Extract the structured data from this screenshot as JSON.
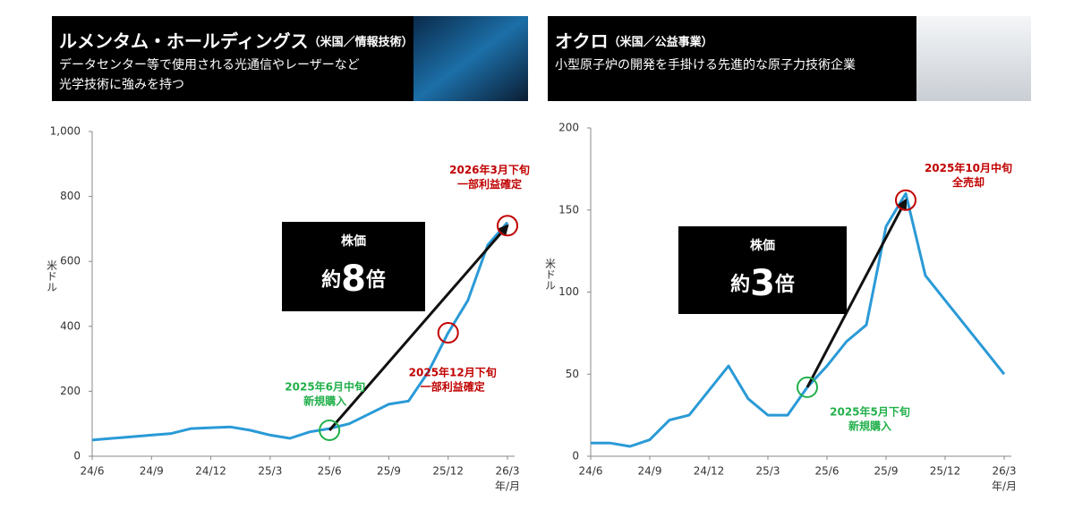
{
  "chart_data": [
    {
      "type": "line",
      "title": "ルメンタム・ホールディングス",
      "title_note": "（米国／情報技術）",
      "subtitle": [
        "データセンター等で使用される光通信やレーザーなど",
        "光学技術に強みを持つ"
      ],
      "y_label": "米ドル",
      "x_label": "年/月",
      "color": "#2a9ad6",
      "x": [
        "2024-06",
        "2024-07",
        "2024-08",
        "2024-09",
        "2024-10",
        "2024-11",
        "2024-12",
        "2025-01",
        "2025-02",
        "2025-03",
        "2025-04",
        "2025-05",
        "2025-06",
        "2025-07",
        "2025-08",
        "2025-09",
        "2025-10",
        "2025-11",
        "2025-12",
        "2026-01",
        "2026-02",
        "2026-03"
      ],
      "values": [
        50,
        55,
        60,
        65,
        70,
        85,
        88,
        90,
        80,
        65,
        55,
        75,
        85,
        100,
        130,
        160,
        170,
        260,
        380,
        480,
        650,
        720
      ],
      "xlim": [
        "2024-06",
        "2026-03"
      ],
      "xticks": [
        {
          "value": "2024-06",
          "label": "24/6"
        },
        {
          "value": "2024-09",
          "label": "24/9"
        },
        {
          "value": "2024-12",
          "label": "24/12"
        },
        {
          "value": "2025-03",
          "label": "25/3"
        },
        {
          "value": "2025-06",
          "label": "25/6"
        },
        {
          "value": "2025-09",
          "label": "25/9"
        },
        {
          "value": "2025-12",
          "label": "25/12"
        },
        {
          "value": "2026-03",
          "label": "26/3"
        }
      ],
      "ylim": [
        0,
        1000
      ],
      "yticks": [
        0,
        200,
        400,
        600,
        800,
        {
          "value": 1000,
          "label": "1,000"
        }
      ],
      "annotations": [
        {
          "lines": [
            "2025年6月中旬",
            "新規購入"
          ],
          "x": "2025-06",
          "value": 80,
          "color": "#22b04b"
        },
        {
          "lines": [
            "2025年12月下旬",
            "一部利益確定"
          ],
          "x": "2025-12",
          "value": 380,
          "color": "#c00000"
        },
        {
          "lines": [
            "2026年3月下旬",
            "一部利益確定"
          ],
          "x": "2026-03",
          "value": 710,
          "color": "#c00000"
        }
      ],
      "callout": {
        "label": "株価",
        "prefix": "約",
        "value": 8,
        "suffix": "倍"
      }
    },
    {
      "type": "line",
      "title": "オクロ",
      "title_note": "（米国／公益事業）",
      "subtitle": [
        "小型原子炉の開発を手掛ける先進的な原子力技術企業"
      ],
      "y_label": "米ドル",
      "x_label": "年/月",
      "color": "#2a9ad6",
      "x": [
        "2024-06",
        "2024-07",
        "2024-08",
        "2024-09",
        "2024-10",
        "2024-11",
        "2024-12",
        "2025-01",
        "2025-02",
        "2025-03",
        "2025-04",
        "2025-05",
        "2025-06",
        "2025-07",
        "2025-08",
        "2025-09",
        "2025-10",
        "2025-11",
        "2025-12",
        "2026-01",
        "2026-02",
        "2026-03"
      ],
      "values": [
        8,
        8,
        6,
        10,
        22,
        25,
        40,
        55,
        35,
        25,
        25,
        42,
        55,
        70,
        80,
        140,
        160,
        110,
        95,
        80,
        65,
        50
      ],
      "xlim": [
        "2024-06",
        "2026-03"
      ],
      "xticks": [
        {
          "value": "2024-06",
          "label": "24/6"
        },
        {
          "value": "2024-09",
          "label": "24/9"
        },
        {
          "value": "2024-12",
          "label": "24/12"
        },
        {
          "value": "2025-03",
          "label": "25/3"
        },
        {
          "value": "2025-06",
          "label": "25/6"
        },
        {
          "value": "2025-09",
          "label": "25/9"
        },
        {
          "value": "2025-12",
          "label": "25/12"
        },
        {
          "value": "2026-03",
          "label": "26/3"
        }
      ],
      "ylim": [
        0,
        200
      ],
      "yticks": [
        0,
        50,
        100,
        150,
        200
      ],
      "annotations": [
        {
          "lines": [
            "2025年5月下旬",
            "新規購入"
          ],
          "x": "2025-05",
          "value": 42,
          "color": "#22b04b"
        },
        {
          "lines": [
            "2025年10月中旬",
            "全売却"
          ],
          "x": "2025-10",
          "value": 156,
          "color": "#c00000"
        }
      ],
      "callout": {
        "label": "株価",
        "prefix": "約",
        "value": 3,
        "suffix": "倍"
      }
    }
  ]
}
